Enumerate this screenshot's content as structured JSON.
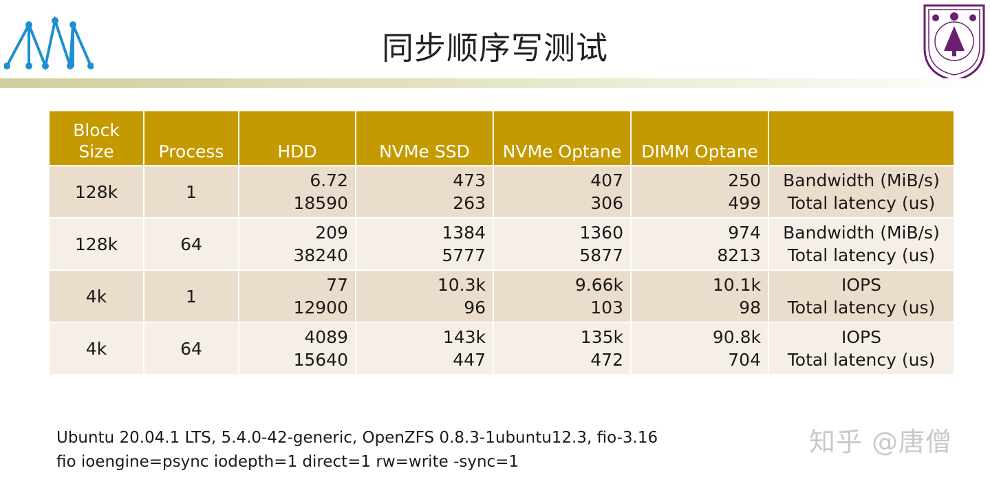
{
  "slide": {
    "title": "同步顺序写测试"
  },
  "table": {
    "headers": [
      "Block\nSize",
      "Process",
      "HDD",
      "NVMe SSD",
      "NVMe Optane",
      "DIMM Optane",
      ""
    ],
    "rows": [
      {
        "block": "128k",
        "process": "1",
        "hdd": [
          "6.72",
          "18590"
        ],
        "ssd": [
          "473",
          "263"
        ],
        "optane": [
          "407",
          "306"
        ],
        "dimm": [
          "250",
          "499"
        ],
        "metric": [
          "Bandwidth (MiB/s)",
          "Total latency (us)"
        ]
      },
      {
        "block": "128k",
        "process": "64",
        "hdd": [
          "209",
          "38240"
        ],
        "ssd": [
          "1384",
          "5777"
        ],
        "optane": [
          "1360",
          "5877"
        ],
        "dimm": [
          "974",
          "8213"
        ],
        "metric": [
          "Bandwidth (MiB/s)",
          "Total latency (us)"
        ]
      },
      {
        "block": "4k",
        "process": "1",
        "hdd": [
          "77",
          "12900"
        ],
        "ssd": [
          "10.3k",
          "96"
        ],
        "optane": [
          "9.66k",
          "103"
        ],
        "dimm": [
          "10.1k",
          "98"
        ],
        "metric": [
          "IOPS",
          "Total latency (us)"
        ]
      },
      {
        "block": "4k",
        "process": "64",
        "hdd": [
          "4089",
          "15640"
        ],
        "ssd": [
          "143k",
          "447"
        ],
        "optane": [
          "135k",
          "472"
        ],
        "dimm": [
          "90.8k",
          "704"
        ],
        "metric": [
          "IOPS",
          "Total latency (us)"
        ]
      }
    ]
  },
  "footer": {
    "line1": "Ubuntu 20.04.1 LTS, 5.4.0-42-generic, OpenZFS 0.8.3-1ubuntu12.3, fio-3.16",
    "line2": "fio ioengine=psync iodepth=1 direct=1 rw=write -sync=1"
  },
  "watermark": "知乎 @唐僧",
  "colors": {
    "header_bg": "#c49a00",
    "row_odd": "#ebddcc",
    "row_even": "#f5efe8",
    "logo_blue": "#1f8fd0",
    "university_purple": "#6b1f70"
  },
  "icons": {
    "left_logo": "triangle-network-logo",
    "right_logo": "university-seal"
  }
}
